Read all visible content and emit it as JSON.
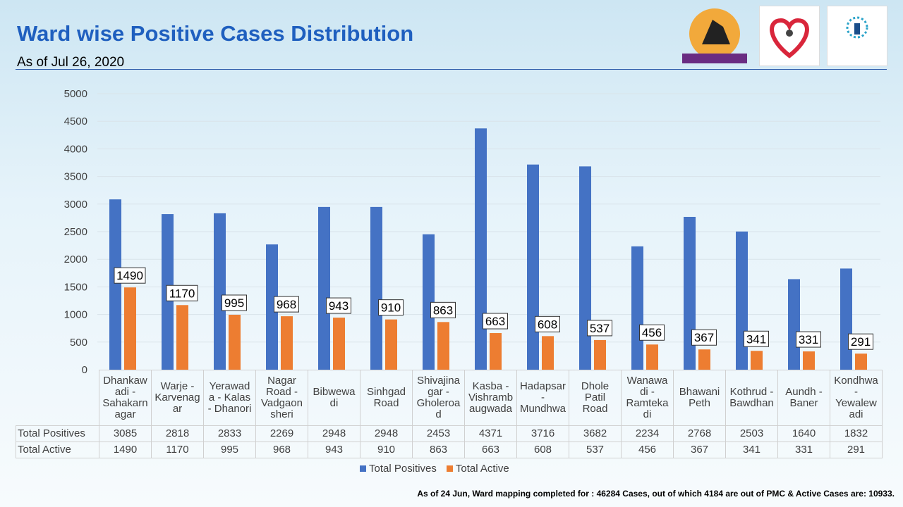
{
  "header": {
    "title": "Ward wise Positive Cases Distribution",
    "subtitle": "As of Jul 26, 2020"
  },
  "footer": "As of 24 Jun, Ward mapping completed for : 46284 Cases, out of which 4184 are out of PMC & Active Cases are: 10933.",
  "chart_data": {
    "type": "bar",
    "categories": [
      "Dhankawadi - Sahakarnagar",
      "Warje - Karvenagar",
      "Yerawada - Kalas - Dhanori",
      "Nagar Road - Vadgaonsheri",
      "Bibwewadi",
      "Sinhgad Road",
      "Shivajinagar - Gholeroad",
      "Kasba - Vishrambaugwada",
      "Hadapsar - Mundhwa",
      "Dhole Patil Road",
      "Wanawadi - Ramtekadi",
      "Bhawani Peth",
      "Kothrud - Bawdhan",
      "Aundh - Baner",
      "Kondhwa - Yewalewadi"
    ],
    "category_labels": [
      [
        "Dhankaw",
        "adi -",
        "Sahakarn",
        "agar"
      ],
      [
        "Warje -",
        "Karvenag",
        "ar"
      ],
      [
        "Yerawad",
        "a - Kalas",
        "- Dhanori"
      ],
      [
        "Nagar",
        "Road -",
        "Vadgaon",
        "sheri"
      ],
      [
        "Bibwewa",
        "di"
      ],
      [
        "Sinhgad",
        "Road"
      ],
      [
        "Shivajina",
        "gar -",
        "Gholeroa",
        "d"
      ],
      [
        "Kasba -",
        "Vishramb",
        "augwada"
      ],
      [
        "Hadapsar",
        "-",
        "Mundhwa"
      ],
      [
        "Dhole",
        "Patil",
        "Road"
      ],
      [
        "Wanawa",
        "di -",
        "Ramteka",
        "di"
      ],
      [
        "Bhawani",
        "Peth"
      ],
      [
        "Kothrud -",
        "Bawdhan"
      ],
      [
        "Aundh -",
        "Baner"
      ],
      [
        "Kondhwa",
        "-",
        "Yewalew",
        "adi"
      ]
    ],
    "series": [
      {
        "name": "Total Positives",
        "color": "#4472c4",
        "values": [
          3085,
          2818,
          2833,
          2269,
          2948,
          2948,
          2453,
          4371,
          3716,
          3682,
          2234,
          2768,
          2503,
          1640,
          1832
        ]
      },
      {
        "name": "Total Active",
        "color": "#ed7d31",
        "values": [
          1490,
          1170,
          995,
          968,
          943,
          910,
          863,
          663,
          608,
          537,
          456,
          367,
          341,
          331,
          291
        ],
        "data_labels": true
      }
    ],
    "ylim": [
      0,
      5000
    ],
    "yticks": [
      "0",
      "500",
      "1000",
      "1500",
      "2000",
      "2500",
      "3000",
      "3500",
      "4000",
      "4500",
      "5000"
    ],
    "grid": true,
    "legend": "bottom",
    "data_table": true
  }
}
